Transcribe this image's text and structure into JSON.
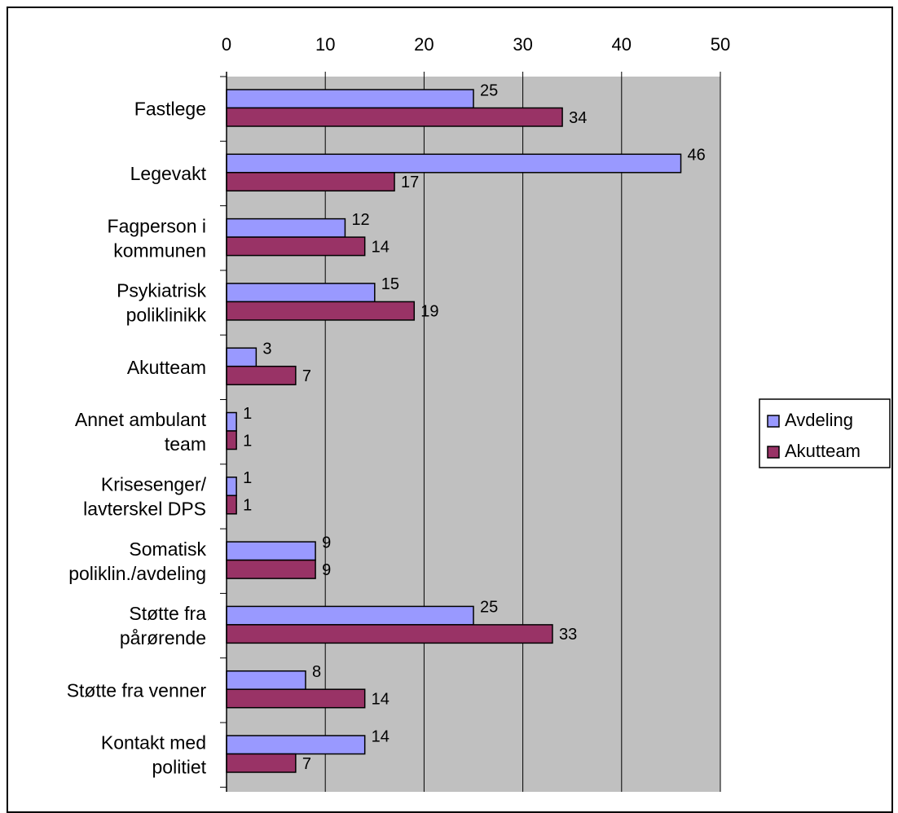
{
  "chart_data": {
    "type": "bar",
    "orientation": "horizontal",
    "categories": [
      [
        "Fastlege"
      ],
      [
        "Legevakt"
      ],
      [
        "Fagperson i",
        "kommunen"
      ],
      [
        "Psykiatrisk",
        "poliklinikk"
      ],
      [
        "Akutteam"
      ],
      [
        "Annet ambulant",
        "team"
      ],
      [
        "Krisesenger/",
        "lavterskel DPS"
      ],
      [
        "Somatisk",
        "poliklin./avdeling"
      ],
      [
        "Støtte fra",
        "pårørende"
      ],
      [
        "Støtte fra venner"
      ],
      [
        "Kontakt med",
        "politiet"
      ]
    ],
    "series": [
      {
        "name": "Avdeling",
        "color": "#9999ff",
        "values": [
          25,
          46,
          12,
          15,
          3,
          1,
          1,
          9,
          25,
          8,
          14
        ]
      },
      {
        "name": "Akutteam",
        "color": "#993366",
        "values": [
          34,
          17,
          14,
          19,
          7,
          1,
          1,
          9,
          33,
          14,
          7
        ]
      }
    ],
    "xlim": [
      0,
      50
    ],
    "x_ticks": [
      "0",
      "10",
      "20",
      "30",
      "40",
      "50"
    ],
    "x_axis_position": "top",
    "plot_background": "#c0c0c0",
    "grid": true,
    "legend_position": "right",
    "title": "",
    "xlabel": "",
    "ylabel": ""
  }
}
